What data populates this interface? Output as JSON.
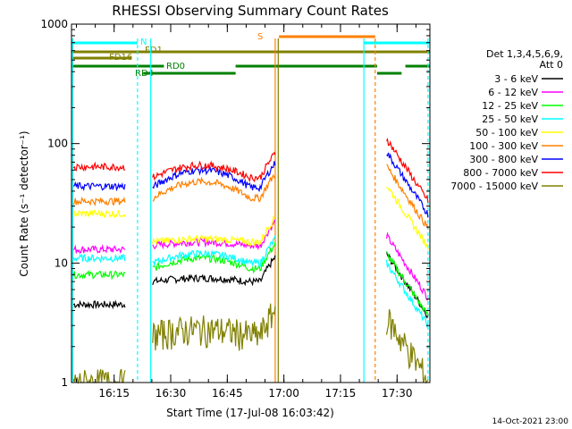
{
  "chart_data": {
    "type": "line",
    "title": "RHESSI Observing Summary Count Rates",
    "xlabel": "Start Time (17-Jul-08 16:03:42)",
    "ylabel": "Count Rate (s⁻¹ detector⁻¹)",
    "ylog": true,
    "ylim": [
      1,
      1000
    ],
    "xlim_minutes": [
      0,
      95
    ],
    "x_ticks": [
      {
        "label": "16:15",
        "min": 11.3
      },
      {
        "label": "16:30",
        "min": 26.3
      },
      {
        "label": "16:45",
        "min": 41.3
      },
      {
        "label": "17:00",
        "min": 56.3
      },
      {
        "label": "17:15",
        "min": 71.3
      },
      {
        "label": "17:30",
        "min": 86.3
      }
    ],
    "y_ticks": [
      {
        "label": "1",
        "v": 1
      },
      {
        "label": "10",
        "v": 10
      },
      {
        "label": "100",
        "v": 100
      },
      {
        "label": "1000",
        "v": 1000
      }
    ],
    "legend_header": [
      "Det 1,3,4,5,6,9,",
      "Att 0"
    ],
    "series": [
      {
        "name": "3 - 6 keV",
        "color": "#000000",
        "levels": [
          4.5,
          7.0,
          7.5,
          12.0
        ]
      },
      {
        "name": "6 - 12 keV",
        "color": "#ff00ff",
        "levels": [
          13.0,
          14.0,
          15.0,
          17.0
        ]
      },
      {
        "name": "12 - 25 keV",
        "color": "#00ff00",
        "levels": [
          8.0,
          9.0,
          11.0,
          12.0
        ]
      },
      {
        "name": "25 - 50 keV",
        "color": "#00ffff",
        "levels": [
          11.0,
          10.0,
          12.0,
          10.0
        ]
      },
      {
        "name": "50 - 100 keV",
        "color": "#ffff00",
        "levels": [
          26.0,
          15.0,
          16.0,
          45.0
        ]
      },
      {
        "name": "100 - 300 keV",
        "color": "#ff8000",
        "levels": [
          33.0,
          35.0,
          48.0,
          65.0
        ]
      },
      {
        "name": "300 - 800 keV",
        "color": "#0000ff",
        "levels": [
          44.0,
          43.0,
          60.0,
          85.0
        ]
      },
      {
        "name": "800 - 7000 keV",
        "color": "#ff0000",
        "levels": [
          64.0,
          52.0,
          66.0,
          110.0
        ]
      },
      {
        "name": "7000 - 15000 keV",
        "color": "#808000",
        "levels": [
          1.0,
          2.5,
          2.8,
          3.5
        ]
      }
    ],
    "flags": [
      {
        "label": "N",
        "color": "#00ffff"
      },
      {
        "label": "FD1",
        "color": "#808000"
      },
      {
        "label": "FD16",
        "color": "#808000"
      },
      {
        "label": "RD4",
        "color": "#008000"
      },
      {
        "label": "RD0",
        "color": "#008000"
      },
      {
        "label": "S",
        "color": "#ff8000"
      }
    ],
    "grid": false,
    "legend_position": "right"
  },
  "footer": {
    "timestamp": "14-Oct-2021 23:00"
  }
}
